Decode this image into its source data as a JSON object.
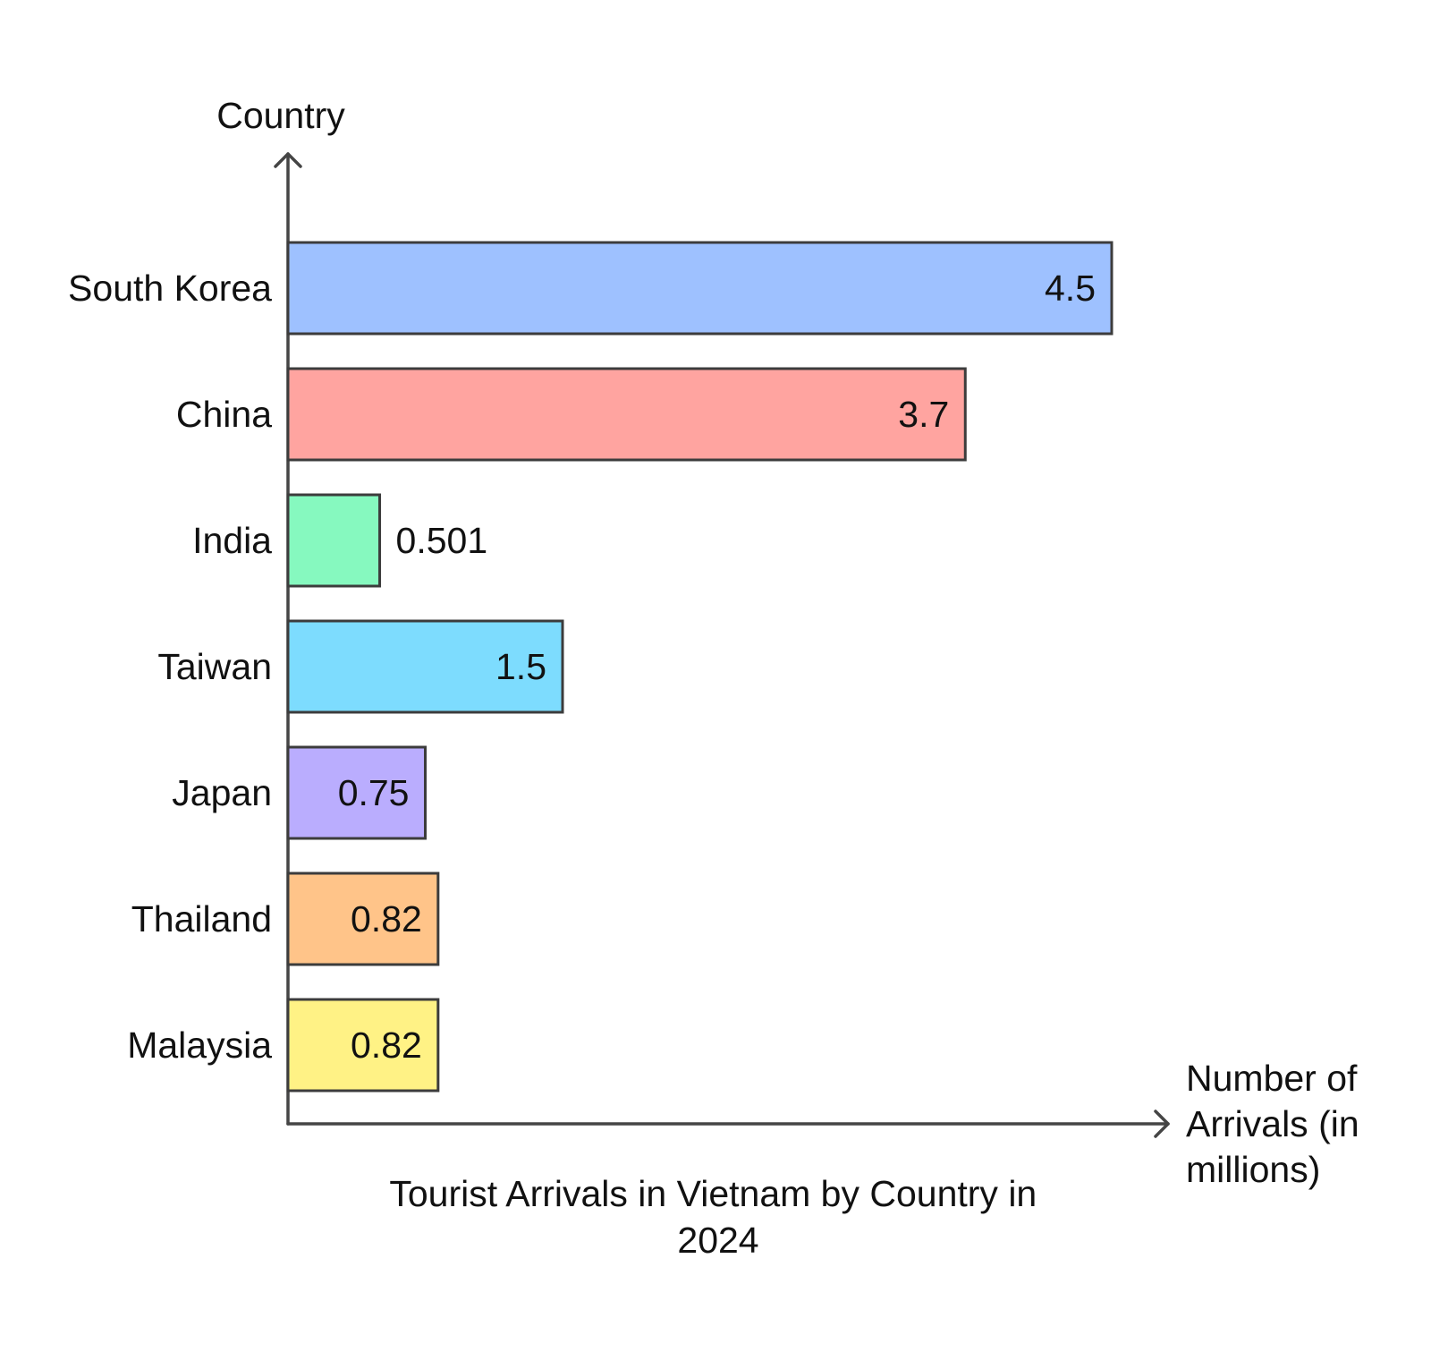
{
  "chart_data": {
    "type": "bar",
    "orientation": "horizontal",
    "title": [
      "Tourist Arrivals in Vietnam by Country in",
      "2024"
    ],
    "xlabel": [
      "Number of",
      "Arrivals (in",
      "millions)"
    ],
    "ylabel": "Country",
    "categories": [
      "South Korea",
      "China",
      "India",
      "Taiwan",
      "Japan",
      "Thailand",
      "Malaysia"
    ],
    "values": [
      4.5,
      3.7,
      0.501,
      1.5,
      0.75,
      0.82,
      0.82
    ],
    "value_labels": [
      "4.5",
      "3.7",
      "0.501",
      "1.5",
      "0.75",
      "0.82",
      "0.82"
    ],
    "colors": [
      "#9ec1ff",
      "#ffa4a0",
      "#86f9bf",
      "#7ddcfe",
      "#baadfe",
      "#ffc489",
      "#fff285"
    ],
    "xlim": [
      0,
      4.5
    ],
    "grid": false,
    "legend": "none"
  }
}
